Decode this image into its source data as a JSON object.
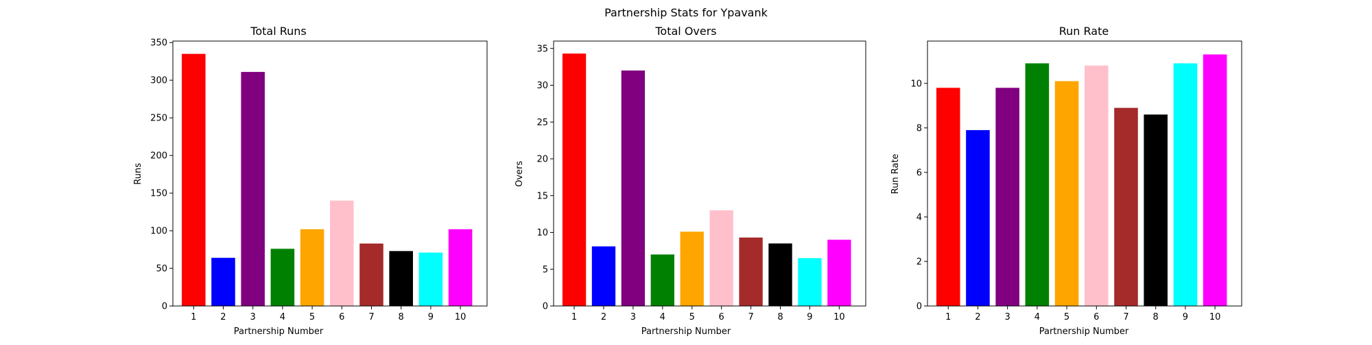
{
  "figure": {
    "title": "Partnership Stats for Ypavank"
  },
  "chart_data": [
    {
      "type": "bar",
      "title": "Total Runs",
      "xlabel": "Partnership Number",
      "ylabel": "Runs",
      "categories": [
        "1",
        "2",
        "3",
        "4",
        "5",
        "6",
        "7",
        "8",
        "9",
        "10"
      ],
      "values": [
        335,
        64,
        311,
        76,
        102,
        140,
        83,
        73,
        71,
        102
      ],
      "colors": [
        "#ff0000",
        "#0000ff",
        "#800080",
        "#008000",
        "#ffa500",
        "#ffc0cb",
        "#a52a2a",
        "#000000",
        "#00ffff",
        "#ff00ff"
      ],
      "ylim": [
        0,
        352
      ],
      "yticks": [
        0,
        50,
        100,
        150,
        200,
        250,
        300,
        350
      ]
    },
    {
      "type": "bar",
      "title": "Total Overs",
      "xlabel": "Partnership Number",
      "ylabel": "Overs",
      "categories": [
        "1",
        "2",
        "3",
        "4",
        "5",
        "6",
        "7",
        "8",
        "9",
        "10"
      ],
      "values": [
        34.3,
        8.1,
        32.0,
        7.0,
        10.1,
        13.0,
        9.3,
        8.5,
        6.5,
        9.0
      ],
      "colors": [
        "#ff0000",
        "#0000ff",
        "#800080",
        "#008000",
        "#ffa500",
        "#ffc0cb",
        "#a52a2a",
        "#000000",
        "#00ffff",
        "#ff00ff"
      ],
      "ylim": [
        0,
        36
      ],
      "yticks": [
        0,
        5,
        10,
        15,
        20,
        25,
        30,
        35
      ]
    },
    {
      "type": "bar",
      "title": "Run Rate",
      "xlabel": "Partnership Number",
      "ylabel": "Run Rate",
      "categories": [
        "1",
        "2",
        "3",
        "4",
        "5",
        "6",
        "7",
        "8",
        "9",
        "10"
      ],
      "values": [
        9.8,
        7.9,
        9.8,
        10.9,
        10.1,
        10.8,
        8.9,
        8.6,
        10.9,
        11.3
      ],
      "colors": [
        "#ff0000",
        "#0000ff",
        "#800080",
        "#008000",
        "#ffa500",
        "#ffc0cb",
        "#a52a2a",
        "#000000",
        "#00ffff",
        "#ff00ff"
      ],
      "ylim": [
        0,
        11.9
      ],
      "yticks": [
        0,
        2,
        4,
        6,
        8,
        10
      ]
    }
  ]
}
